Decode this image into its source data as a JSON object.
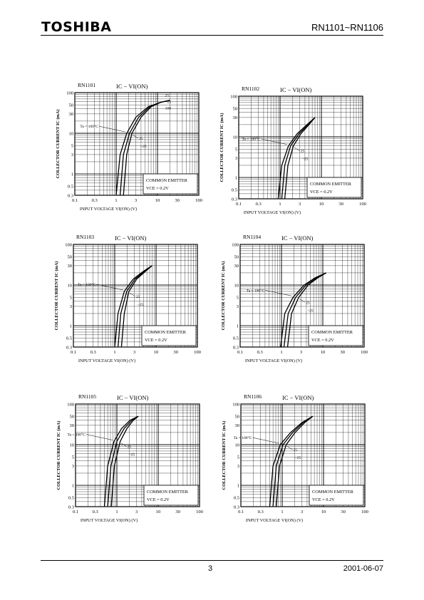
{
  "header": {
    "brand": "TOSHIBA",
    "part_range": "RN1101~RN1106"
  },
  "footer": {
    "page_number": "3",
    "date": "2001-06-07"
  },
  "chart_data": [
    {
      "type": "line",
      "part": "RN1101",
      "title": "IC − VI(ON)",
      "xlabel": "INPUT VOLTAGE VI(ON)  (V)",
      "ylabel": "COLLECTOR CURRENT IC  (mA)",
      "xscale": "log",
      "yscale": "log",
      "xlim": [
        0.1,
        100
      ],
      "ylim": [
        0.3,
        100
      ],
      "xticks": [
        "0.1",
        "0.3",
        "1",
        "3",
        "10",
        "30",
        "100"
      ],
      "yticks": [
        "0.3",
        "0.5",
        "1",
        "3",
        "5",
        "10",
        "30",
        "50",
        "100"
      ],
      "condition": [
        "COMMON EMITTER",
        "VCE = 0.2V"
      ],
      "labels_top": [
        "25",
        "−25",
        "100"
      ],
      "label_ta": "Ta = 100°C",
      "labels_bottom": [
        "25",
        "−25"
      ],
      "series": [
        {
          "x": [
            1.0,
            1.25,
            1.8,
            3,
            6,
            12,
            20
          ],
          "y": [
            0.3,
            3,
            10,
            25,
            45,
            58,
            65
          ]
        },
        {
          "x": [
            1.25,
            1.5,
            2.1,
            3.5,
            6.5,
            12,
            20
          ],
          "y": [
            0.3,
            3,
            10,
            25,
            45,
            58,
            65
          ]
        },
        {
          "x": [
            1.5,
            1.8,
            2.4,
            4,
            7,
            12,
            20
          ],
          "y": [
            0.3,
            3,
            10,
            25,
            45,
            58,
            65
          ]
        }
      ]
    },
    {
      "type": "line",
      "part": "RN1102",
      "title": "IC − VI(ON)",
      "xlabel": "INPUT VOLTAGE VI(ON)  (V)",
      "ylabel": "COLLECTOR CURRENT IC  (mA)",
      "xscale": "log",
      "yscale": "log",
      "xlim": [
        0.1,
        100
      ],
      "ylim": [
        0.3,
        100
      ],
      "xticks": [
        "0.1",
        "0.3",
        "1",
        "3",
        "10",
        "30",
        "100"
      ],
      "yticks": [
        "0.3",
        "0.5",
        "1",
        "3",
        "5",
        "10",
        "30",
        "50",
        "100"
      ],
      "condition": [
        "COMMON EMITTER",
        "VCE = 0.2V"
      ],
      "label_ta": "Ta = 100°C",
      "labels_bottom": [
        "25",
        "−25"
      ],
      "series": [
        {
          "x": [
            0.9,
            1.1,
            1.6,
            2.6,
            4.5,
            7
          ],
          "y": [
            0.3,
            2,
            6,
            12,
            20,
            30
          ]
        },
        {
          "x": [
            1.1,
            1.3,
            1.8,
            2.9,
            4.8,
            7
          ],
          "y": [
            0.3,
            2,
            6,
            12,
            20,
            30
          ]
        },
        {
          "x": [
            1.3,
            1.55,
            2.1,
            3.2,
            5,
            7
          ],
          "y": [
            0.3,
            2,
            6,
            12,
            20,
            30
          ]
        }
      ]
    },
    {
      "type": "line",
      "part": "RN1103",
      "title": "IC − VI(ON)",
      "xlabel": "INPUT VOLTAGE VI(ON)  (V)",
      "ylabel": "COLLECTOR CURRENT IC  (mA)",
      "xscale": "log",
      "yscale": "log",
      "xlim": [
        0.1,
        100
      ],
      "ylim": [
        0.3,
        100
      ],
      "xticks": [
        "0.1",
        "0.3",
        "1",
        "3",
        "10",
        "30",
        "100"
      ],
      "yticks": [
        "0.3",
        "0.5",
        "1",
        "3",
        "5",
        "10",
        "30",
        "50",
        "100"
      ],
      "condition": [
        "COMMON EMITTER",
        "VCE = 0.2V"
      ],
      "label_ta": "Ta = 100°C",
      "labels_bottom": [
        "25",
        "−25"
      ],
      "series": [
        {
          "x": [
            1.0,
            1.2,
            1.7,
            2.8,
            5,
            8
          ],
          "y": [
            0.3,
            2,
            7,
            14,
            22,
            30
          ]
        },
        {
          "x": [
            1.2,
            1.4,
            1.95,
            3.1,
            5.3,
            8
          ],
          "y": [
            0.3,
            2,
            7,
            14,
            22,
            30
          ]
        },
        {
          "x": [
            1.45,
            1.7,
            2.2,
            3.4,
            5.6,
            8
          ],
          "y": [
            0.3,
            2,
            7,
            14,
            22,
            30
          ]
        }
      ]
    },
    {
      "type": "line",
      "part": "RN1104",
      "title": "IC − VI(ON)",
      "xlabel": "INPUT VOLTAGE VI(ON)  (V)",
      "ylabel": "COLLECTOR CURRENT IC  (mA)",
      "xscale": "log",
      "yscale": "log",
      "xlim": [
        0.1,
        100
      ],
      "ylim": [
        0.3,
        100
      ],
      "xticks": [
        "0.1",
        "0.3",
        "1",
        "3",
        "10",
        "30",
        "100"
      ],
      "yticks": [
        "0.3",
        "0.5",
        "1",
        "3",
        "5",
        "10",
        "30",
        "50",
        "100"
      ],
      "condition": [
        "COMMON EMITTER",
        "VCE = 0.2V"
      ],
      "label_ta": "Ta = 100°C",
      "labels_bottom": [
        "25",
        "−25"
      ],
      "series": [
        {
          "x": [
            0.95,
            1.2,
            1.9,
            3.5,
            6.5,
            12
          ],
          "y": [
            0.3,
            2,
            5,
            10,
            15,
            20
          ]
        },
        {
          "x": [
            1.15,
            1.45,
            2.2,
            3.9,
            7,
            12
          ],
          "y": [
            0.3,
            2,
            5,
            10,
            15,
            20
          ]
        },
        {
          "x": [
            1.4,
            1.75,
            2.6,
            4.4,
            7.5,
            12
          ],
          "y": [
            0.3,
            2,
            5,
            10,
            15,
            20
          ]
        }
      ]
    },
    {
      "type": "line",
      "part": "RN1105",
      "title": "IC − VI(ON)",
      "xlabel": "INPUT VOLTAGE VI(ON)  (V)",
      "ylabel": "COLLECTOR CURRENT IC  (mA)",
      "xscale": "log",
      "yscale": "log",
      "xlim": [
        0.1,
        100
      ],
      "ylim": [
        0.3,
        100
      ],
      "xticks": [
        "0.1",
        "0.3",
        "1",
        "3",
        "10",
        "30",
        "100"
      ],
      "yticks": [
        "0.3",
        "0.5",
        "1",
        "3",
        "5",
        "10",
        "30",
        "50",
        "100"
      ],
      "condition": [
        "COMMON EMITTER",
        "VCE = 0.2V"
      ],
      "label_ta": "Ta = 100°C",
      "labels_bottom": [
        "25",
        "−25"
      ],
      "series": [
        {
          "x": [
            0.5,
            0.6,
            0.85,
            1.3,
            2.1,
            3.3
          ],
          "y": [
            0.3,
            3,
            12,
            25,
            40,
            50
          ]
        },
        {
          "x": [
            0.6,
            0.72,
            1.0,
            1.5,
            2.3,
            3.3
          ],
          "y": [
            0.3,
            3,
            12,
            25,
            40,
            50
          ]
        },
        {
          "x": [
            0.73,
            0.87,
            1.2,
            1.75,
            2.5,
            3.3
          ],
          "y": [
            0.3,
            3,
            12,
            25,
            40,
            50
          ]
        }
      ]
    },
    {
      "type": "line",
      "part": "RN1106",
      "title": "IC − VI(ON)",
      "xlabel": "INPUT VOLTAGE VI(ON)  (V)",
      "ylabel": "COLLECTOR CURRENT IC  (mA)",
      "xscale": "log",
      "yscale": "log",
      "xlim": [
        0.1,
        100
      ],
      "ylim": [
        0.3,
        100
      ],
      "xticks": [
        "0.1",
        "0.3",
        "1",
        "3",
        "10",
        "30",
        "100"
      ],
      "yticks": [
        "0.3",
        "0.5",
        "1",
        "3",
        "5",
        "10",
        "30",
        "50",
        "100"
      ],
      "condition": [
        "COMMON EMITTER",
        "VCE = 0.2V"
      ],
      "label_ta": "Ta = 100°C",
      "labels_bottom": [
        "25",
        "−25"
      ],
      "series": [
        {
          "x": [
            0.5,
            0.6,
            0.9,
            1.6,
            3,
            5.5
          ],
          "y": [
            0.3,
            3,
            10,
            20,
            35,
            50
          ]
        },
        {
          "x": [
            0.6,
            0.72,
            1.05,
            1.8,
            3.2,
            5.5
          ],
          "y": [
            0.3,
            3,
            10,
            20,
            35,
            50
          ]
        },
        {
          "x": [
            0.72,
            0.86,
            1.25,
            2.05,
            3.5,
            5.5
          ],
          "y": [
            0.3,
            3,
            10,
            20,
            35,
            50
          ]
        }
      ]
    }
  ]
}
